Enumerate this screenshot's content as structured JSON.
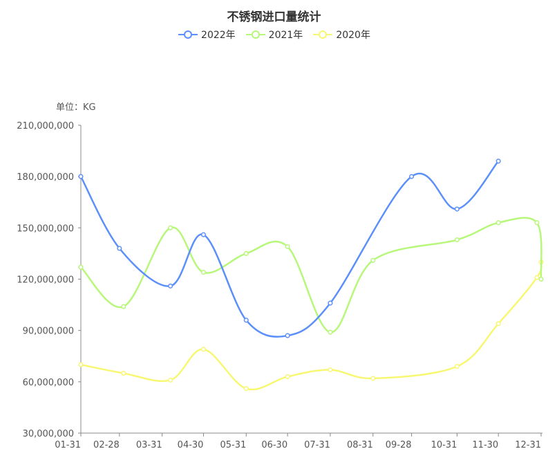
{
  "chart_data": {
    "type": "line",
    "title": "不锈钢进口量统计",
    "unit_label": "单位：KG",
    "ylim": [
      30000000,
      210000000
    ],
    "y_ticks": [
      30000000,
      60000000,
      90000000,
      120000000,
      150000000,
      180000000,
      210000000
    ],
    "y_tick_labels": [
      "30,000,000",
      "60,000,000",
      "90,000,000",
      "120,000,000",
      "150,000,000",
      "180,000,000",
      "210,000,000"
    ],
    "x_tick_labels": [
      "01-31",
      "02-28",
      "03-31",
      "04-30",
      "05-31",
      "06-30",
      "07-31",
      "08-31",
      "09-28",
      "10-31",
      "11-30",
      "12-31"
    ],
    "x_range_days": [
      31,
      366
    ],
    "legend_position": "top-center",
    "smooth": true,
    "series": [
      {
        "name": "2022年",
        "color": "#5b8ff9",
        "points": [
          {
            "x": "01-31",
            "y": 180000000
          },
          {
            "x": "02-28",
            "y": 138000000
          },
          {
            "x": "04-06",
            "y": 116000000
          },
          {
            "x": "04-30",
            "y": 146000000
          },
          {
            "x": "05-31",
            "y": 96000000
          },
          {
            "x": "06-30",
            "y": 87000000
          },
          {
            "x": "07-31",
            "y": 106000000
          },
          {
            "x": "09-28",
            "y": 180000000
          },
          {
            "x": "10-31",
            "y": 161000000
          },
          {
            "x": "11-30",
            "y": 189000000
          }
        ]
      },
      {
        "name": "2021年",
        "color": "#b7f77a",
        "points": [
          {
            "x": "01-31",
            "y": 127000000
          },
          {
            "x": "03-03",
            "y": 104000000
          },
          {
            "x": "04-06",
            "y": 150000000
          },
          {
            "x": "04-30",
            "y": 124000000
          },
          {
            "x": "05-31",
            "y": 135000000
          },
          {
            "x": "06-30",
            "y": 139000000
          },
          {
            "x": "07-31",
            "y": 89000000
          },
          {
            "x": "08-31",
            "y": 131000000
          },
          {
            "x": "10-31",
            "y": 143000000
          },
          {
            "x": "11-30",
            "y": 153000000
          },
          {
            "x": "12-28",
            "y": 153000000
          },
          {
            "x": "12-31",
            "y": 120000000
          }
        ]
      },
      {
        "name": "2020年",
        "color": "#f7f772",
        "points": [
          {
            "x": "01-31",
            "y": 70000000
          },
          {
            "x": "03-03",
            "y": 65000000
          },
          {
            "x": "04-06",
            "y": 61000000
          },
          {
            "x": "04-30",
            "y": 79000000
          },
          {
            "x": "05-31",
            "y": 56000000
          },
          {
            "x": "06-30",
            "y": 63000000
          },
          {
            "x": "07-31",
            "y": 67000000
          },
          {
            "x": "08-31",
            "y": 62000000
          },
          {
            "x": "10-31",
            "y": 69000000
          },
          {
            "x": "11-30",
            "y": 94000000
          },
          {
            "x": "12-28",
            "y": 121000000
          },
          {
            "x": "12-31",
            "y": 130000000
          }
        ]
      }
    ]
  }
}
